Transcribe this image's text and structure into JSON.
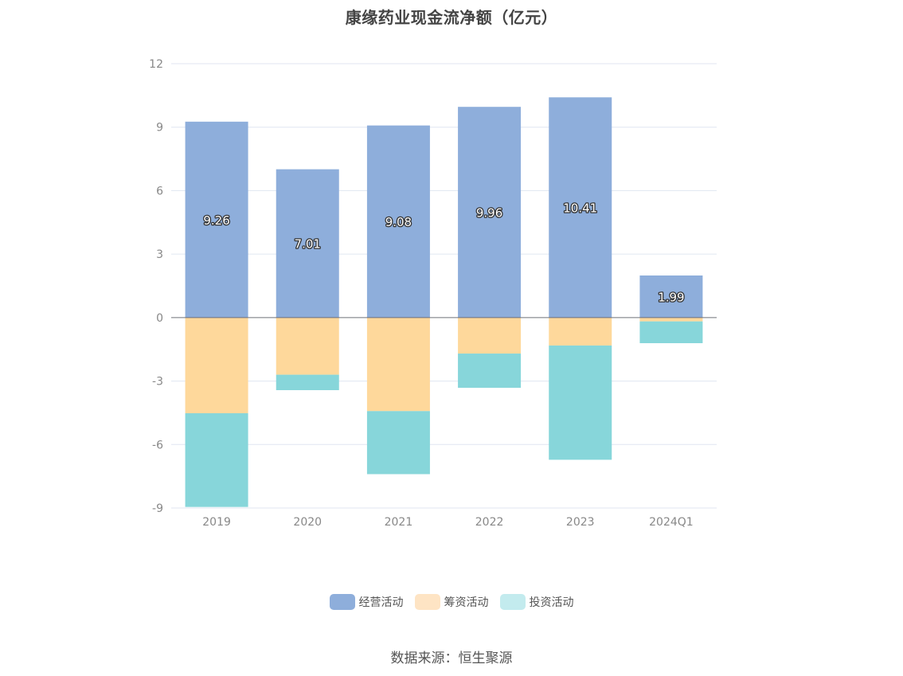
{
  "chart_data": {
    "type": "bar",
    "stacked": true,
    "title": "康缘药业现金流净额（亿元）",
    "categories": [
      "2019",
      "2020",
      "2021",
      "2022",
      "2023",
      "2024Q1"
    ],
    "series": [
      {
        "name": "经营活动",
        "color": "#8eaedb",
        "values": [
          9.26,
          7.01,
          9.08,
          9.96,
          10.41,
          1.99
        ]
      },
      {
        "name": "筹资活动",
        "color": "#fed89b",
        "values": [
          -4.52,
          -2.7,
          -4.42,
          -1.7,
          -1.32,
          -0.18
        ]
      },
      {
        "name": "投资活动",
        "color": "#87d6da",
        "values": [
          -4.43,
          -0.73,
          -2.98,
          -1.62,
          -5.4,
          -1.03
        ]
      }
    ],
    "data_labels": [
      "9.26",
      "7.01",
      "9.08",
      "9.96",
      "10.41",
      "1.99"
    ],
    "yticks": [
      "12",
      "9",
      "6",
      "3",
      "0",
      "-3",
      "-6",
      "-9"
    ],
    "ylim": [
      -9,
      12
    ],
    "legend_position": "bottom",
    "grid": true,
    "legend_colors": [
      "#8eaedb",
      "#fee4c4",
      "#c3ebee"
    ]
  },
  "source": "数据来源：恒生聚源"
}
